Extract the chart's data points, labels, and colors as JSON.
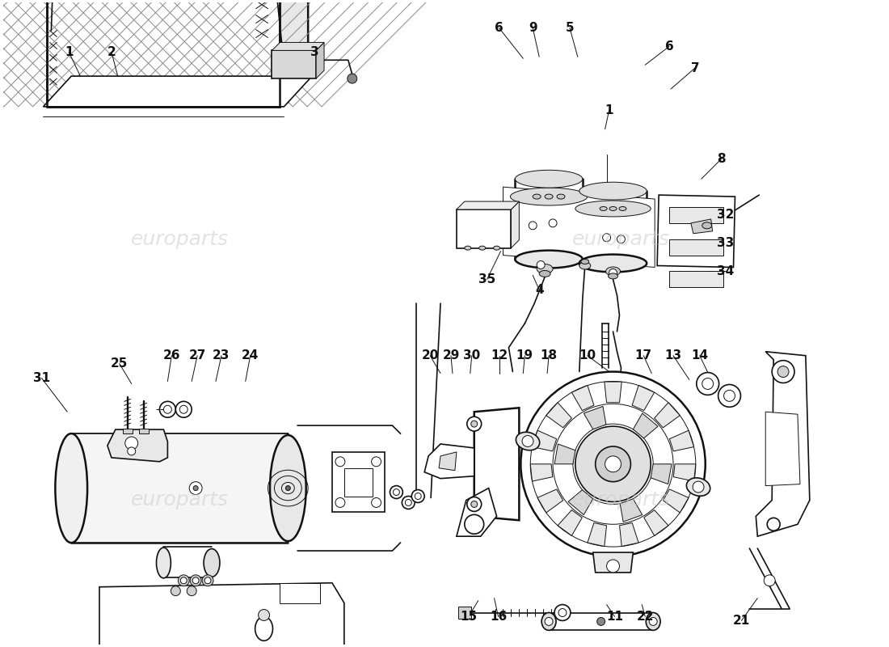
{
  "bg_color": "#ffffff",
  "line_color": "#111111",
  "watermark_text": "europarts",
  "font_size_label": 10,
  "font_size_bold": 11
}
